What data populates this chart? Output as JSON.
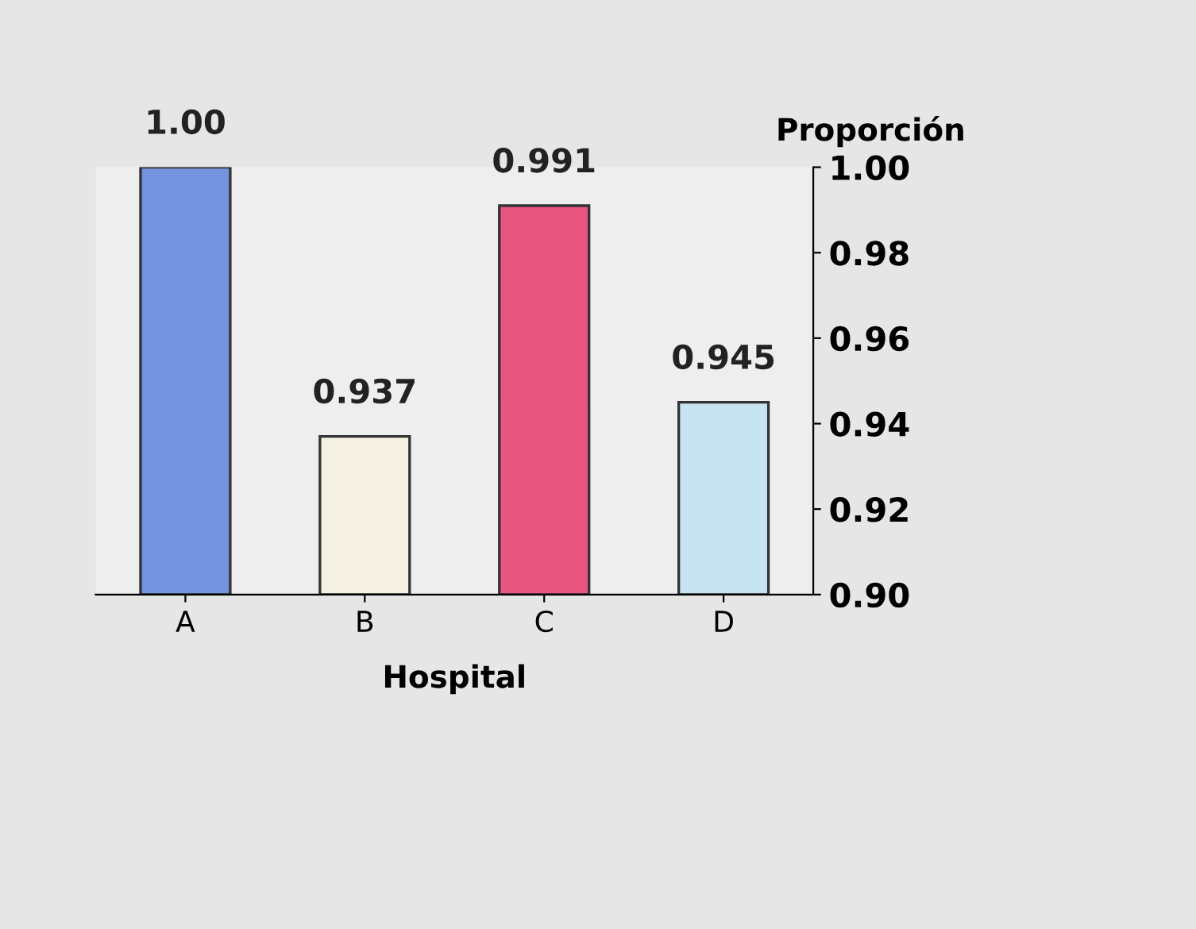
{
  "chart_data": {
    "type": "bar",
    "xlabel": "Hospital",
    "ylabel": "Proporción",
    "categories": [
      "A",
      "B",
      "C",
      "D"
    ],
    "values": [
      1.0,
      0.937,
      0.991,
      0.945
    ],
    "value_labels": [
      "1.00",
      "0.937",
      "0.991",
      "0.945"
    ],
    "colors": [
      "#7393de",
      "#f4f1e2",
      "#e8557e",
      "#c6e3f2"
    ],
    "ylim": [
      0.9,
      1.0
    ],
    "yticks": [
      {
        "value": 0.9,
        "label": "0.90"
      },
      {
        "value": 0.92,
        "label": "0.92"
      },
      {
        "value": 0.94,
        "label": "0.94"
      },
      {
        "value": 0.96,
        "label": "0.96"
      },
      {
        "value": 0.98,
        "label": "0.98"
      },
      {
        "value": 1.0,
        "label": "1.00"
      }
    ],
    "grid": false
  }
}
